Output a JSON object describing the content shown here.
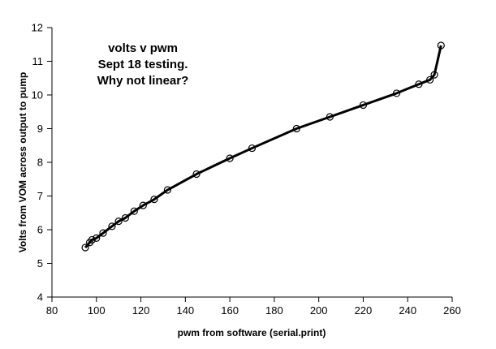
{
  "chart_data": {
    "type": "line",
    "title_lines": [
      "volts v pwm",
      "Sept 18 testing.",
      "Why not linear?"
    ],
    "xlabel": "pwm from software (serial.print)",
    "ylabel": "Volts from VOM across output to pump",
    "xlim": [
      80,
      260
    ],
    "ylim": [
      4,
      12
    ],
    "x_ticks": [
      80,
      100,
      120,
      140,
      160,
      180,
      200,
      220,
      240,
      260
    ],
    "y_ticks": [
      4,
      5,
      6,
      7,
      8,
      9,
      10,
      11,
      12
    ],
    "grid": false,
    "legend": "none",
    "marker": "open-circle",
    "line_color": "#000000",
    "series": [
      {
        "x": [
          95,
          97,
          98,
          100,
          103,
          107,
          110,
          113,
          117,
          121,
          126,
          132,
          145,
          160,
          170,
          190,
          205,
          220,
          235,
          245,
          250,
          252,
          255
        ],
        "y": [
          5.47,
          5.62,
          5.7,
          5.75,
          5.9,
          6.1,
          6.25,
          6.35,
          6.55,
          6.72,
          6.9,
          7.18,
          7.65,
          8.12,
          8.42,
          9.0,
          9.35,
          9.7,
          10.05,
          10.32,
          10.45,
          10.6,
          11.47
        ]
      }
    ]
  }
}
